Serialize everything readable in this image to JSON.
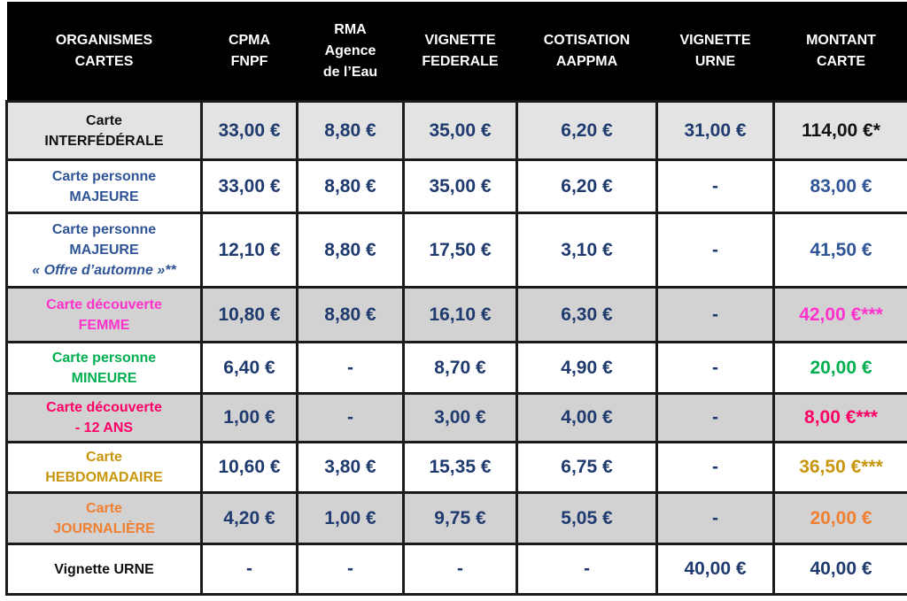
{
  "headers": [
    [
      "ORGANISMES",
      "CARTES"
    ],
    [
      "CPMA",
      "FNPF"
    ],
    [
      "RMA",
      "Agence",
      "de l’Eau"
    ],
    [
      "VIGNETTE",
      "FEDERALE"
    ],
    [
      "COTISATION",
      "AAPPMA"
    ],
    [
      "VIGNETTE",
      "URNE"
    ],
    [
      "MONTANT",
      "CARTE"
    ]
  ],
  "rows": [
    {
      "name": [
        "Carte",
        "INTERFÉDÉRALE"
      ],
      "name_color": "#111111",
      "bg": "light",
      "values": [
        "33,00 €",
        "8,80 €",
        "35,00 €",
        "6,20 €",
        "31,00 €"
      ],
      "total": "114,00 €*",
      "total_color": "#111111"
    },
    {
      "name": [
        "Carte personne",
        "MAJEURE"
      ],
      "name_color": "#2f5597",
      "bg": "white",
      "values": [
        "33,00 €",
        "8,80 €",
        "35,00 €",
        "6,20 €",
        "-"
      ],
      "total": "83,00 €",
      "total_color": "#2f5597"
    },
    {
      "name": [
        "Carte personne",
        "MAJEURE"
      ],
      "name_extra": "« Offre d’automne »**",
      "name_color": "#2f5597",
      "bg": "white",
      "values": [
        "12,10 €",
        "8,80 €",
        "17,50 €",
        "3,10 €",
        "-"
      ],
      "total": "41,50 €",
      "total_color": "#2f5597"
    },
    {
      "name": [
        "Carte découverte",
        "FEMME"
      ],
      "name_color": "#ff33cc",
      "bg": "grey",
      "values": [
        "10,80 €",
        "8,80 €",
        "16,10 €",
        "6,30 €",
        "-"
      ],
      "total": "42,00 €***",
      "total_color": "#ff33cc"
    },
    {
      "name": [
        "Carte personne",
        "MINEURE"
      ],
      "name_color": "#00b050",
      "bg": "white",
      "values": [
        "6,40 €",
        "-",
        "8,70 €",
        "4,90 €",
        "-"
      ],
      "total": "20,00 €",
      "total_color": "#00b050"
    },
    {
      "name": [
        "Carte découverte",
        "- 12 ANS"
      ],
      "name_color": "#ff0066",
      "bg": "grey",
      "values": [
        "1,00 €",
        "-",
        "3,00 €",
        "4,00 €",
        "-"
      ],
      "total": "8,00 €***",
      "total_color": "#ff0066"
    },
    {
      "name": [
        "Carte",
        "HEBDOMADAIRE"
      ],
      "name_color": "#c8960c",
      "bg": "white",
      "values": [
        "10,60 €",
        "3,80 €",
        "15,35 €",
        "6,75 €",
        "-"
      ],
      "total": "36,50 €***",
      "total_color": "#c8960c"
    },
    {
      "name": [
        "Carte",
        "JOURNALIÈRE"
      ],
      "name_color": "#f08030",
      "bg": "grey",
      "values": [
        "4,20 €",
        "1,00 €",
        "9,75 €",
        "5,05 €",
        "-"
      ],
      "total": "20,00 €",
      "total_color": "#f08030"
    },
    {
      "name": [
        "Vignette URNE"
      ],
      "name_color": "#111111",
      "bg": "white",
      "values": [
        "-",
        "-",
        "-",
        "-",
        "40,00 €"
      ],
      "total": "40,00 €",
      "total_color": "#1f3a6e"
    }
  ],
  "colors": {
    "header_bg": "#000000",
    "value_text": "#1f3a6e",
    "grey_row": "#d3d2d3"
  }
}
